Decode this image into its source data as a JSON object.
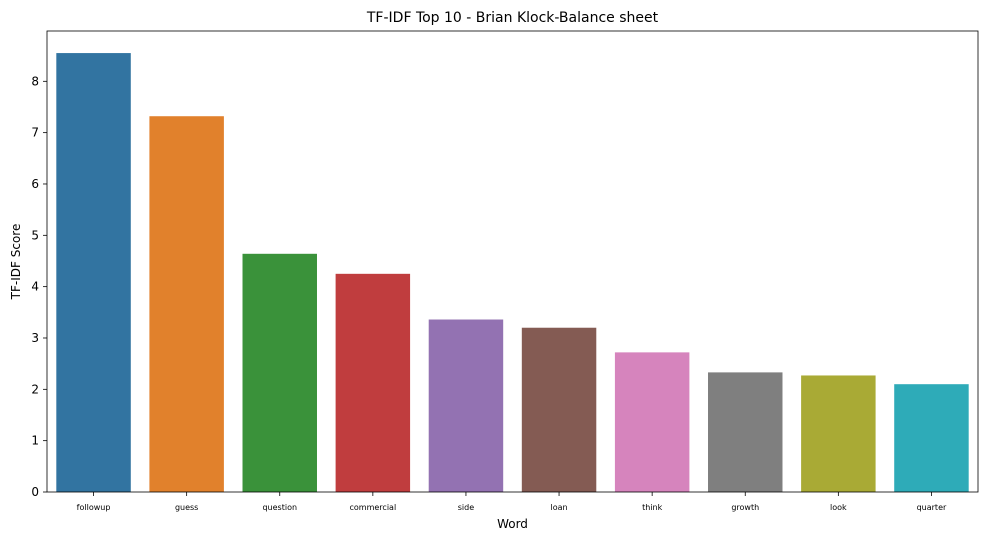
{
  "chart_data": {
    "type": "bar",
    "title": "TF-IDF Top 10 - Brian Klock-Balance sheet",
    "xlabel": "Word",
    "ylabel": "TF-IDF Score",
    "categories": [
      "followup",
      "guess",
      "question",
      "commercial",
      "side",
      "loan",
      "think",
      "growth",
      "look",
      "quarter"
    ],
    "values": [
      8.55,
      7.32,
      4.64,
      4.25,
      3.36,
      3.2,
      2.72,
      2.33,
      2.27,
      2.1
    ],
    "colors": [
      "#3274a1",
      "#e1812c",
      "#3a923a",
      "#c03d3e",
      "#9372b2",
      "#845b53",
      "#d684bd",
      "#7f7f7f",
      "#a9aa35",
      "#2eabb8"
    ],
    "ylim": [
      0,
      8.98
    ],
    "yticks": [
      0,
      1,
      2,
      3,
      4,
      5,
      6,
      7,
      8
    ],
    "grid": false,
    "legend": "none"
  }
}
